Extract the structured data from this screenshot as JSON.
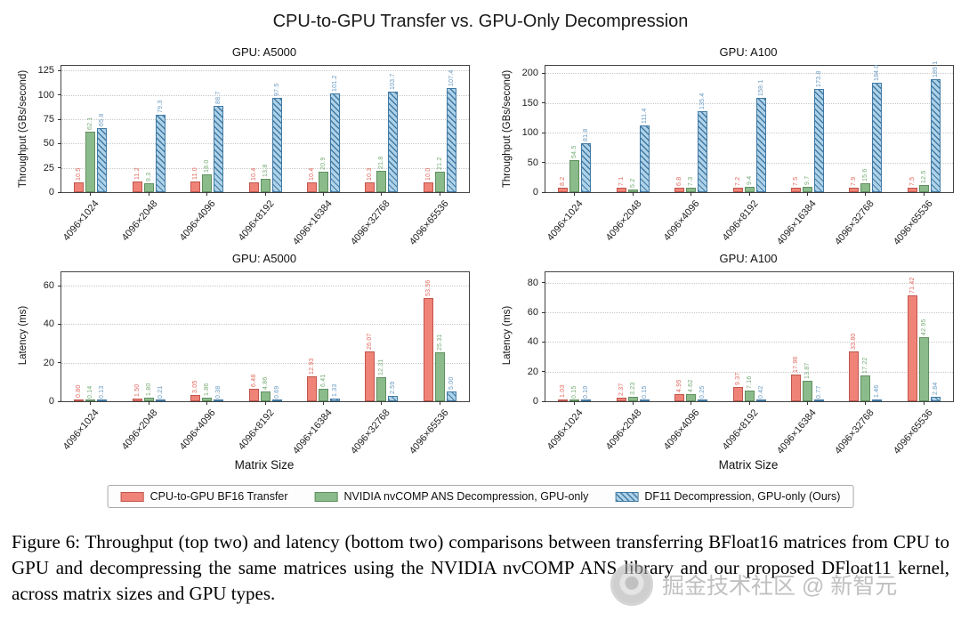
{
  "figure": {
    "title": "CPU-to-GPU Transfer vs. GPU-Only Decompression",
    "caption": "Figure 6: Throughput (top two) and latency (bottom two) comparisons between transferring BFloat16 matrices from CPU to GPU and decompressing the same matrices using the NVIDIA nvCOMP ANS library and our proposed DFloat11 kernel, across matrix sizes and GPU types.",
    "watermark": "掘金技术社区 @ 新智元"
  },
  "chart_data": [
    {
      "type": "bar",
      "title": "GPU: A5000",
      "ylabel": "Throughput (GBs/second)",
      "xlabel": "",
      "categories": [
        "4096×1024",
        "4096×2048",
        "4096×4096",
        "4096×8192",
        "4096×16384",
        "4096×32768",
        "4096×65536"
      ],
      "ylim": [
        0,
        130
      ],
      "yticks": [
        0,
        25,
        50,
        75,
        100,
        125
      ],
      "grid": true,
      "label_decimals": 1,
      "series": [
        {
          "key": "bf16-transfer",
          "name": "CPU-to-GPU BF16 Transfer",
          "fill": "#ef8378",
          "edge": "#c0544b",
          "label_color": "#e0675c",
          "hatch": false,
          "values": [
            10.5,
            11.2,
            11.0,
            10.4,
            10.4,
            10.3,
            10.0
          ]
        },
        {
          "key": "nvcomp-ans",
          "name": "NVIDIA nvCOMP ANS Decompression, GPU-only",
          "fill": "#8cbb8b",
          "edge": "#5e8f5e",
          "label_color": "#74ab74",
          "hatch": false,
          "values": [
            62.1,
            9.3,
            18.0,
            13.8,
            20.9,
            21.8,
            21.2
          ]
        },
        {
          "key": "df11",
          "name": "DF11 Decompression, GPU-only (Ours)",
          "fill": "#aed2e8",
          "edge": "#4179a3",
          "label_color": "#6699c2",
          "hatch": true,
          "values": [
            65.8,
            79.3,
            88.7,
            97.5,
            101.2,
            103.7,
            107.4
          ]
        }
      ]
    },
    {
      "type": "bar",
      "title": "GPU: A100",
      "ylabel": "Throughput (GBs/second)",
      "xlabel": "",
      "categories": [
        "4096×1024",
        "4096×2048",
        "4096×4096",
        "4096×8192",
        "4096×16384",
        "4096×32768",
        "4096×65536"
      ],
      "ylim": [
        0,
        212
      ],
      "yticks": [
        0,
        50,
        100,
        150,
        200
      ],
      "grid": true,
      "label_decimals": 1,
      "series": [
        {
          "key": "bf16-transfer",
          "name": "CPU-to-GPU BF16 Transfer",
          "fill": "#ef8378",
          "edge": "#c0544b",
          "label_color": "#e0675c",
          "hatch": false,
          "values": [
            8.2,
            7.1,
            6.8,
            7.2,
            7.5,
            7.9,
            7.5
          ]
        },
        {
          "key": "nvcomp-ans",
          "name": "NVIDIA nvCOMP ANS Decompression, GPU-only",
          "fill": "#8cbb8b",
          "edge": "#5e8f5e",
          "label_color": "#74ab74",
          "hatch": false,
          "values": [
            54.5,
            5.2,
            7.3,
            9.4,
            9.7,
            15.6,
            12.5
          ]
        },
        {
          "key": "df11",
          "name": "DF11 Decompression, GPU-only (Ours)",
          "fill": "#aed2e8",
          "edge": "#4179a3",
          "label_color": "#6699c2",
          "hatch": true,
          "values": [
            81.8,
            111.4,
            135.4,
            158.1,
            173.8,
            184.0,
            189.1
          ]
        }
      ]
    },
    {
      "type": "bar",
      "title": "GPU: A5000",
      "ylabel": "Latency (ms)",
      "xlabel": "Matrix Size",
      "categories": [
        "4096×1024",
        "4096×2048",
        "4096×4096",
        "4096×8192",
        "4096×16384",
        "4096×32768",
        "4096×65536"
      ],
      "ylim": [
        0,
        67
      ],
      "yticks": [
        0,
        20,
        40,
        60
      ],
      "grid": true,
      "label_decimals": 2,
      "series": [
        {
          "key": "bf16-transfer",
          "name": "CPU-to-GPU BF16 Transfer",
          "fill": "#ef8378",
          "edge": "#c0544b",
          "label_color": "#e0675c",
          "hatch": false,
          "values": [
            0.8,
            1.5,
            3.05,
            6.48,
            12.93,
            26.07,
            53.56
          ]
        },
        {
          "key": "nvcomp-ans",
          "name": "NVIDIA nvCOMP ANS Decompression, GPU-only",
          "fill": "#8cbb8b",
          "edge": "#5e8f5e",
          "label_color": "#74ab74",
          "hatch": false,
          "values": [
            0.14,
            1.8,
            1.86,
            4.86,
            6.41,
            12.31,
            25.31
          ]
        },
        {
          "key": "df11",
          "name": "DF11 Decompression, GPU-only (Ours)",
          "fill": "#aed2e8",
          "edge": "#4179a3",
          "label_color": "#6699c2",
          "hatch": true,
          "values": [
            0.13,
            0.21,
            0.38,
            0.69,
            1.33,
            2.59,
            5.0
          ]
        }
      ]
    },
    {
      "type": "bar",
      "title": "GPU: A100",
      "ylabel": "Latency (ms)",
      "xlabel": "Matrix Size",
      "categories": [
        "4096×1024",
        "4096×2048",
        "4096×4096",
        "4096×8192",
        "4096×16384",
        "4096×32768",
        "4096×65536"
      ],
      "ylim": [
        0,
        87
      ],
      "yticks": [
        0,
        20,
        40,
        60,
        80
      ],
      "grid": true,
      "label_decimals": 2,
      "series": [
        {
          "key": "bf16-transfer",
          "name": "CPU-to-GPU BF16 Transfer",
          "fill": "#ef8378",
          "edge": "#c0544b",
          "label_color": "#e0675c",
          "hatch": false,
          "values": [
            1.03,
            2.37,
            4.95,
            9.37,
            17.96,
            33.8,
            71.42
          ]
        },
        {
          "key": "nvcomp-ans",
          "name": "NVIDIA nvCOMP ANS Decompression, GPU-only",
          "fill": "#8cbb8b",
          "edge": "#5e8f5e",
          "label_color": "#74ab74",
          "hatch": false,
          "values": [
            0.15,
            3.23,
            4.62,
            7.16,
            13.87,
            17.22,
            42.95
          ]
        },
        {
          "key": "df11",
          "name": "DF11 Decompression, GPU-only (Ours)",
          "fill": "#aed2e8",
          "edge": "#4179a3",
          "label_color": "#6699c2",
          "hatch": true,
          "values": [
            0.1,
            0.15,
            0.25,
            0.42,
            0.77,
            1.46,
            2.84
          ]
        }
      ]
    }
  ]
}
